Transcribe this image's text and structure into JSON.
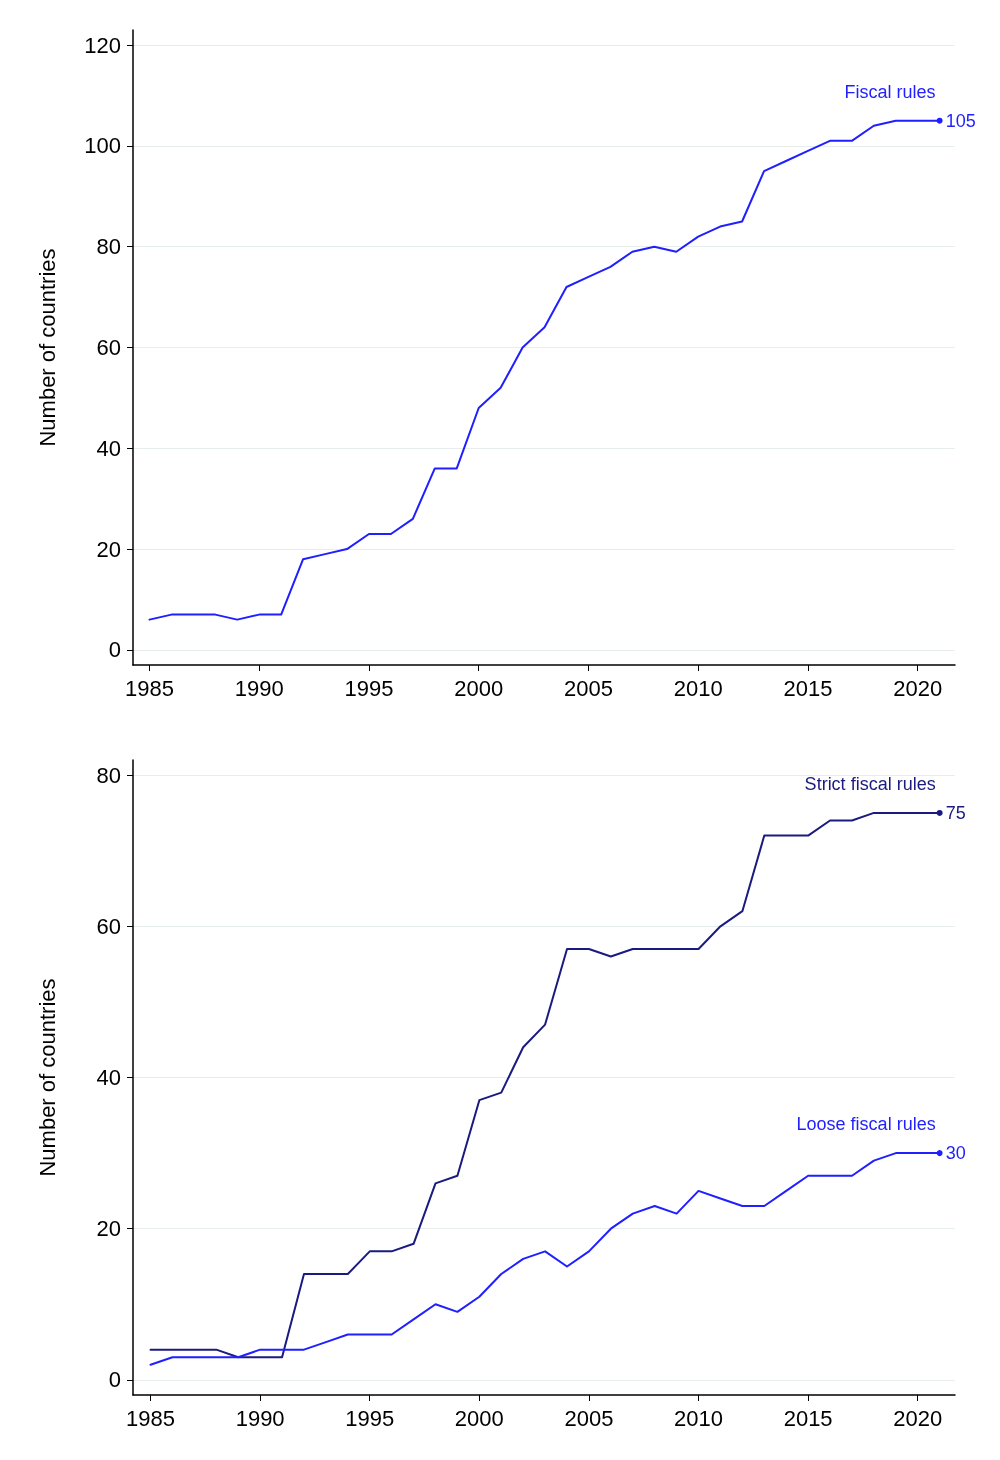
{
  "chart_data": [
    {
      "type": "line",
      "ylabel": "Number of countries",
      "x": [
        1985,
        1986,
        1987,
        1988,
        1989,
        1990,
        1991,
        1992,
        1993,
        1994,
        1995,
        1996,
        1997,
        1998,
        1999,
        2000,
        2001,
        2002,
        2003,
        2004,
        2005,
        2006,
        2007,
        2008,
        2009,
        2010,
        2011,
        2012,
        2013,
        2014,
        2015,
        2016,
        2017,
        2018,
        2019,
        2020,
        2021
      ],
      "series": [
        {
          "name": "Fiscal rules",
          "color": "#1f1fff",
          "values": [
            6,
            7,
            7,
            7,
            6,
            7,
            7,
            18,
            19,
            20,
            23,
            23,
            26,
            36,
            36,
            48,
            52,
            60,
            64,
            72,
            74,
            76,
            79,
            80,
            79,
            82,
            84,
            85,
            95,
            97,
            99,
            101,
            101,
            104,
            105,
            105,
            105
          ],
          "value_labels": [
            null,
            null,
            null,
            null,
            null,
            null,
            null,
            null,
            null,
            null,
            null,
            null,
            null,
            null,
            null,
            null,
            null,
            null,
            null,
            null,
            null,
            null,
            null,
            null,
            null,
            null,
            null,
            null,
            null,
            null,
            null,
            null,
            null,
            null,
            null,
            null,
            "105"
          ]
        }
      ],
      "xlim": [
        1984.25,
        2021.7
      ],
      "xticks": [
        1985,
        1990,
        1995,
        2000,
        2005,
        2010,
        2015,
        2020
      ],
      "ylim": [
        -3,
        123
      ],
      "yticks": [
        0,
        20,
        40,
        60,
        80,
        100,
        120
      ],
      "grid": "y",
      "legend": false,
      "line_style": "solid"
    },
    {
      "type": "line",
      "ylabel": "Number of countries",
      "x": [
        1985,
        1986,
        1987,
        1988,
        1989,
        1990,
        1991,
        1992,
        1993,
        1994,
        1995,
        1996,
        1997,
        1998,
        1999,
        2000,
        2001,
        2002,
        2003,
        2004,
        2005,
        2006,
        2007,
        2008,
        2009,
        2010,
        2011,
        2012,
        2013,
        2014,
        2015,
        2016,
        2017,
        2018,
        2019,
        2020,
        2021
      ],
      "series": [
        {
          "name": "Strict fiscal rules",
          "color": "#1a1a80",
          "values": [
            4,
            4,
            4,
            4,
            3,
            3,
            3,
            14,
            14,
            14,
            17,
            17,
            18,
            26,
            27,
            37,
            38,
            44,
            47,
            57,
            57,
            56,
            57,
            57,
            57,
            57,
            60,
            62,
            72,
            72,
            72,
            74,
            74,
            75,
            75,
            75,
            75
          ],
          "value_labels": [
            null,
            null,
            null,
            null,
            null,
            null,
            null,
            null,
            null,
            null,
            null,
            null,
            null,
            null,
            null,
            null,
            null,
            null,
            null,
            null,
            null,
            null,
            null,
            null,
            null,
            null,
            null,
            null,
            null,
            null,
            null,
            null,
            null,
            null,
            null,
            null,
            "75"
          ]
        },
        {
          "name": "Loose fiscal rules",
          "color": "#1f1fff",
          "values": [
            2,
            3,
            3,
            3,
            3,
            4,
            4,
            4,
            5,
            6,
            6,
            6,
            8,
            10,
            9,
            11,
            14,
            16,
            17,
            15,
            17,
            20,
            22,
            23,
            22,
            25,
            24,
            23,
            23,
            25,
            27,
            27,
            27,
            29,
            30,
            30,
            30
          ],
          "value_labels": [
            null,
            null,
            null,
            null,
            null,
            null,
            null,
            null,
            null,
            null,
            null,
            null,
            null,
            null,
            null,
            null,
            null,
            null,
            null,
            null,
            null,
            null,
            null,
            null,
            null,
            null,
            null,
            null,
            null,
            null,
            null,
            null,
            null,
            null,
            null,
            null,
            "30"
          ]
        }
      ],
      "xlim": [
        1984.2,
        2021.7
      ],
      "xticks": [
        1985,
        1990,
        1995,
        2000,
        2005,
        2010,
        2015,
        2020
      ],
      "ylim": [
        -2,
        82
      ],
      "yticks": [
        0,
        20,
        40,
        60,
        80
      ],
      "grid": "y",
      "legend": false,
      "line_style": "solid"
    }
  ]
}
